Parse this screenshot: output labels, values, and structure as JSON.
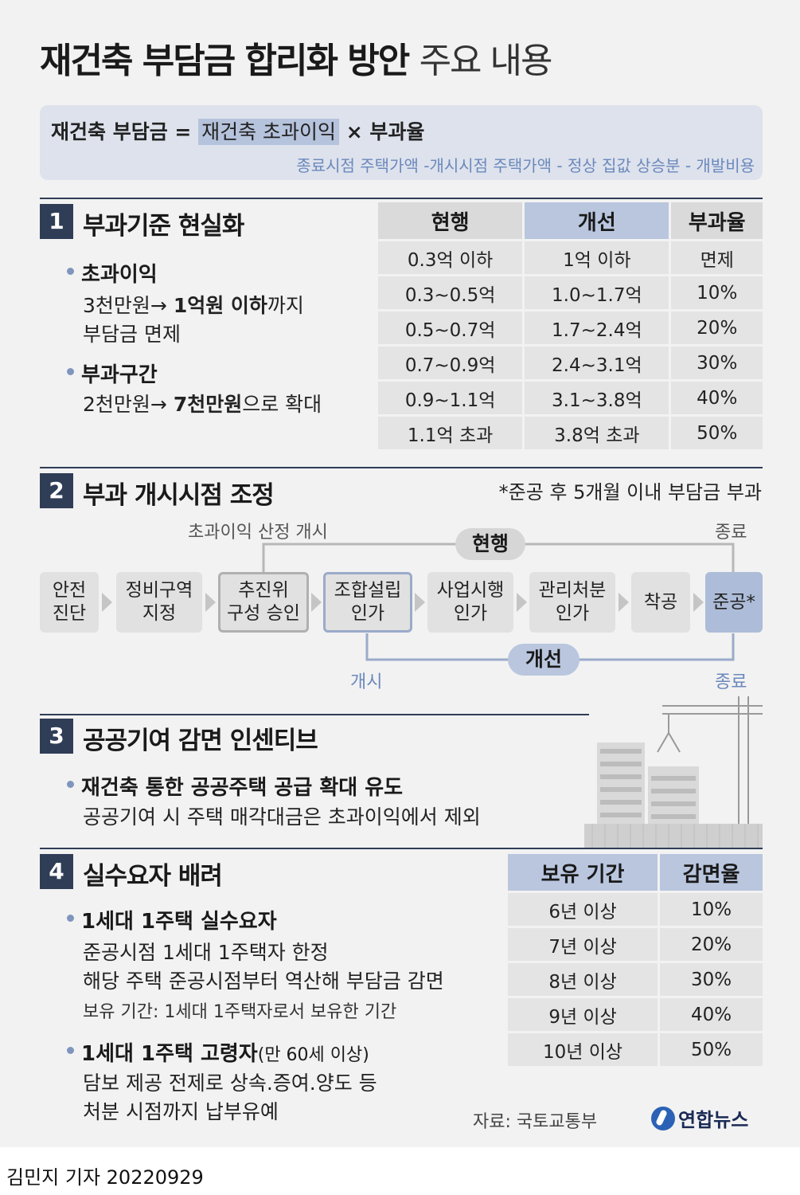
{
  "title": {
    "bold": "재건축 부담금 합리화 방안",
    "light": "주요 내용"
  },
  "formula": {
    "lhs": "재건축 부담금 =",
    "highlight": "재건축 초과이익",
    "rhs": "× 부과율",
    "detail": "종료시점 주택가액 -개시시점 주택가액 - 정상 집값 상승분 - 개발비용"
  },
  "section1": {
    "num": "1",
    "title": "부과기준 현실화",
    "bullets": [
      {
        "head": "초과이익",
        "line1_pre": "3천만원→ ",
        "line1_bold": "1억원 이하",
        "line1_post": "까지",
        "line2": "부담금 면제"
      },
      {
        "head": "부과구간",
        "line1_pre": "2천만원→ ",
        "line1_bold": "7천만원",
        "line1_post": "으로 확대"
      }
    ],
    "table": {
      "headers": [
        "현행",
        "개선",
        "부과율"
      ],
      "rows": [
        [
          "0.3억 이하",
          "1억 이하",
          "면제"
        ],
        [
          "0.3~0.5억",
          "1.0~1.7억",
          "10%"
        ],
        [
          "0.5~0.7억",
          "1.7~2.4억",
          "20%"
        ],
        [
          "0.7~0.9억",
          "2.4~3.1억",
          "30%"
        ],
        [
          "0.9~1.1억",
          "3.1~3.8억",
          "40%"
        ],
        [
          "1.1억 초과",
          "3.8억 초과",
          "50%"
        ]
      ]
    }
  },
  "section2": {
    "num": "2",
    "title": "부과 개시시점 조정",
    "note": "*준공 후 5개월 이내 부담금 부과",
    "steps": [
      "안전\n진단",
      "정비구역\n지정",
      "추진위\n구성 승인",
      "조합설립\n인가",
      "사업시행\n인가",
      "관리처분\n인가",
      "착공",
      "준공*"
    ],
    "current": {
      "label": "현행",
      "start": "초과이익 산정 개시",
      "end": "종료"
    },
    "improved": {
      "label": "개선",
      "start": "개시",
      "end": "종료"
    }
  },
  "section3": {
    "num": "3",
    "title": "공공기여 감면 인센티브",
    "bullet": "재건축 통한 공공주택 공급 확대 유도",
    "line": "공공기여 시 주택 매각대금은 초과이익에서 제외"
  },
  "section4": {
    "num": "4",
    "title": "실수요자 배려",
    "bullet1": "1세대 1주택 실수요자",
    "b1_line1": "준공시점 1세대 1주택자 한정",
    "b1_line2": "해당 주택 준공시점부터 역산해 부담금 감면",
    "b1_note": "보유 기간: 1세대 1주택자로서 보유한 기간",
    "bullet2": "1세대 1주택 고령자",
    "bullet2_paren": "(만 60세 이상)",
    "b2_line1": "담보 제공 전제로 상속.증여.양도 등",
    "b2_line2": "처분 시점까지 납부유예",
    "table": {
      "headers": [
        "보유 기간",
        "감면율"
      ],
      "rows": [
        [
          "6년 이상",
          "10%"
        ],
        [
          "7년 이상",
          "20%"
        ],
        [
          "8년 이상",
          "30%"
        ],
        [
          "9년 이상",
          "40%"
        ],
        [
          "10년 이상",
          "50%"
        ]
      ]
    }
  },
  "source": "자료: 국토교통부",
  "logo": "연합뉴스",
  "byline": "김민지 기자  20220929"
}
